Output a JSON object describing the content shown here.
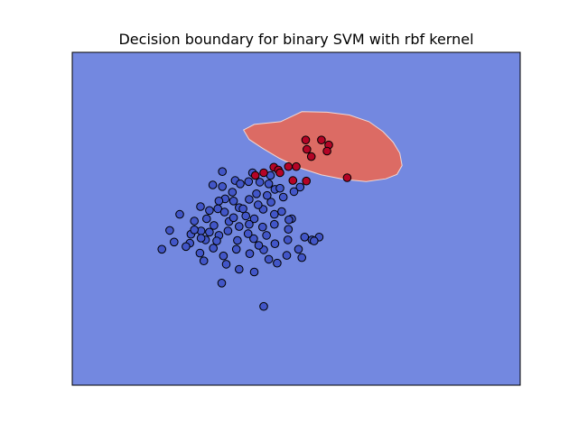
{
  "chart_data": {
    "type": "scatter",
    "title": "Decision boundary for binary SVM with rbf kernel",
    "xlabel": "",
    "ylabel": "",
    "xlim": [
      -3,
      5
    ],
    "ylim": [
      -4,
      2
    ],
    "axis_ticks": false,
    "grid": false,
    "colors": {
      "background_region": "#7388e0",
      "positive_region": "#dc6b64",
      "region_edge": "#f0d8d5",
      "class_0_point": "#4256c8",
      "class_1_point": "#b40426",
      "point_edge": "#000000"
    },
    "decision_region": {
      "class": 1,
      "boundary": [
        [
          0.72,
          0.75
        ],
        [
          1.1,
          0.93
        ],
        [
          1.55,
          0.92
        ],
        [
          1.95,
          0.87
        ],
        [
          2.3,
          0.75
        ],
        [
          2.55,
          0.57
        ],
        [
          2.73,
          0.38
        ],
        [
          2.85,
          0.18
        ],
        [
          2.89,
          -0.04
        ],
        [
          2.8,
          -0.2
        ],
        [
          2.6,
          -0.28
        ],
        [
          2.25,
          -0.33
        ],
        [
          1.85,
          -0.29
        ],
        [
          1.45,
          -0.21
        ],
        [
          1.05,
          -0.08
        ],
        [
          0.7,
          0.09
        ],
        [
          0.4,
          0.27
        ],
        [
          0.16,
          0.43
        ],
        [
          0.06,
          0.6
        ],
        [
          0.25,
          0.7
        ]
      ]
    },
    "series": [
      {
        "class": 0,
        "points": [
          [
            -0.32,
            -0.15
          ],
          [
            0.22,
            -0.17
          ],
          [
            -0.32,
            -0.42
          ],
          [
            -0.49,
            -0.39
          ],
          [
            -0.09,
            -0.31
          ],
          [
            0.15,
            -0.33
          ],
          [
            0.35,
            -0.34
          ],
          [
            0.54,
            -0.22
          ],
          [
            -0.14,
            -0.52
          ],
          [
            0.0,
            -0.37
          ],
          [
            0.51,
            -0.37
          ],
          [
            1.07,
            -0.43
          ],
          [
            0.96,
            -0.51
          ],
          [
            -0.12,
            -0.68
          ],
          [
            0.16,
            -0.65
          ],
          [
            -0.02,
            -0.8
          ],
          [
            0.41,
            -0.83
          ],
          [
            0.62,
            -0.47
          ],
          [
            0.71,
            -0.45
          ],
          [
            0.77,
            -0.61
          ],
          [
            0.55,
            -0.7
          ],
          [
            0.48,
            -0.58
          ],
          [
            0.29,
            -0.55
          ],
          [
            -0.27,
            -0.64
          ],
          [
            -0.38,
            -0.68
          ],
          [
            -0.4,
            -0.82
          ],
          [
            -0.55,
            -0.85
          ],
          [
            -0.71,
            -0.78
          ],
          [
            -0.28,
            -0.88
          ],
          [
            0.1,
            -0.95
          ],
          [
            0.25,
            -1.0
          ],
          [
            0.32,
            -0.75
          ],
          [
            0.61,
            -0.92
          ],
          [
            0.74,
            -0.87
          ],
          [
            0.92,
            -1.0
          ],
          [
            0.86,
            -1.19
          ],
          [
            0.61,
            -1.1
          ],
          [
            0.4,
            -1.15
          ],
          [
            0.16,
            -1.1
          ],
          [
            -0.02,
            -1.14
          ],
          [
            -0.22,
            -1.22
          ],
          [
            -0.47,
            -1.12
          ],
          [
            -0.6,
            -1.0
          ],
          [
            -0.82,
            -1.04
          ],
          [
            -1.08,
            -0.92
          ],
          [
            -0.7,
            -1.22
          ],
          [
            -0.88,
            -1.28
          ],
          [
            -0.9,
            -1.44
          ],
          [
            -0.62,
            -1.38
          ],
          [
            -0.38,
            -1.3
          ],
          [
            -0.05,
            -1.39
          ],
          [
            0.24,
            -1.36
          ],
          [
            0.47,
            -1.3
          ],
          [
            0.62,
            -1.45
          ],
          [
            0.85,
            -1.38
          ],
          [
            1.15,
            -1.33
          ],
          [
            1.41,
            -1.33
          ],
          [
            1.28,
            -1.38
          ],
          [
            1.04,
            -1.55
          ],
          [
            0.83,
            -1.66
          ],
          [
            0.42,
            -1.56
          ],
          [
            0.17,
            -1.63
          ],
          [
            -0.07,
            -1.55
          ],
          [
            -0.3,
            -1.67
          ],
          [
            -0.48,
            -1.53
          ],
          [
            -0.72,
            -1.62
          ],
          [
            -0.97,
            -1.5
          ],
          [
            -1.18,
            -1.42
          ],
          [
            -1.4,
            -1.55
          ],
          [
            -0.65,
            -1.76
          ],
          [
            -0.25,
            -1.82
          ],
          [
            0.51,
            -1.73
          ],
          [
            0.25,
            -1.96
          ],
          [
            -0.02,
            -1.91
          ],
          [
            0.66,
            -1.8
          ],
          [
            1.1,
            -1.7
          ],
          [
            1.32,
            -1.4
          ],
          [
            -0.82,
            -1.2
          ],
          [
            -0.2,
            -1.05
          ],
          [
            0.05,
            -0.82
          ],
          [
            -0.55,
            -1.24
          ],
          [
            0.14,
            -1.27
          ],
          [
            0.33,
            -1.48
          ],
          [
            -0.42,
            -1.4
          ],
          [
            -1.26,
            -1.21
          ],
          [
            -0.33,
            -2.16
          ],
          [
            0.42,
            -2.58
          ],
          [
            -0.7,
            -1.35
          ],
          [
            0.87,
            -1.02
          ],
          [
            -0.12,
            -0.98
          ]
        ]
      },
      {
        "class": 1,
        "points": [
          [
            1.17,
            0.42
          ],
          [
            1.45,
            0.42
          ],
          [
            1.19,
            0.25
          ],
          [
            1.27,
            0.12
          ],
          [
            1.58,
            0.33
          ],
          [
            1.55,
            0.22
          ],
          [
            0.6,
            -0.07
          ],
          [
            0.86,
            -0.06
          ],
          [
            1.0,
            -0.06
          ],
          [
            0.68,
            -0.12
          ],
          [
            0.71,
            -0.17
          ],
          [
            0.42,
            -0.17
          ],
          [
            0.27,
            -0.22
          ],
          [
            0.94,
            -0.31
          ],
          [
            1.18,
            -0.32
          ],
          [
            1.91,
            -0.26
          ]
        ]
      }
    ]
  }
}
